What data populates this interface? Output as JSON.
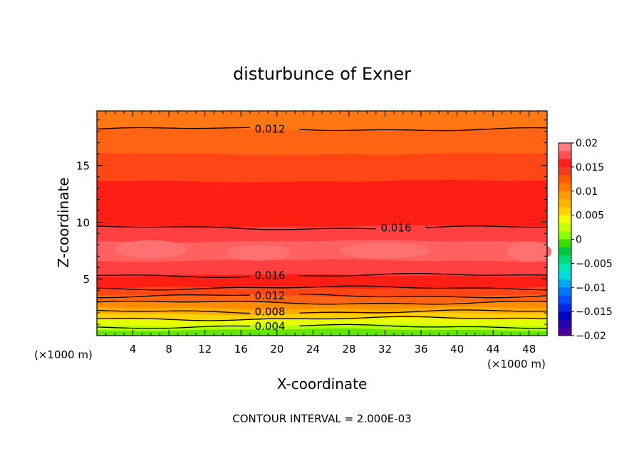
{
  "chart_data": {
    "type": "heatmap",
    "title": "disturbunce of Exner",
    "xlabel": "X-coordinate",
    "ylabel": "Z-coordinate",
    "x_unit_label": "(×1000 m)",
    "x_unit_label_right": "(×1000 m)",
    "xlim": [
      0,
      50
    ],
    "ylim": [
      0,
      19.8
    ],
    "x_ticks": [
      4,
      8,
      12,
      16,
      20,
      24,
      28,
      32,
      36,
      40,
      44,
      48
    ],
    "y_ticks": [
      5,
      10,
      15
    ],
    "footer": "CONTOUR INTERVAL = 2.000E-03",
    "contour_interval": 0.002,
    "colorbar": {
      "min": -0.02,
      "max": 0.02,
      "ticks": [
        "0.02",
        "0.015",
        "0.01",
        "0.005",
        "0",
        "−0.005",
        "−0.01",
        "−0.015",
        "−0.02"
      ],
      "colors": [
        "#ff8080",
        "#ff5050",
        "#ff1e1e",
        "#f03c1e",
        "#ff5a00",
        "#ff7a00",
        "#ff9a00",
        "#ffb400",
        "#ffd200",
        "#f0ff00",
        "#c8ff00",
        "#8cff00",
        "#3cdc00",
        "#00c83c",
        "#00dc78",
        "#00e6b4",
        "#00dcdc",
        "#00aaf0",
        "#0078ff",
        "#0050ff",
        "#0028e6",
        "#0000c8",
        "#2800b4",
        "#5000a0"
      ]
    },
    "bands": [
      {
        "z_top": 19.8,
        "z_bot": 18.2,
        "value": 0.0115,
        "color": "#ff7814"
      },
      {
        "z_top": 18.2,
        "z_bot": 16.0,
        "value": 0.0125,
        "color": "#ff6414"
      },
      {
        "z_top": 16.0,
        "z_bot": 13.6,
        "value": 0.0135,
        "color": "#ff4614"
      },
      {
        "z_top": 13.6,
        "z_bot": 9.6,
        "value": 0.015,
        "color": "#ff1e14"
      },
      {
        "z_top": 9.6,
        "z_bot": 8.3,
        "value": 0.0165,
        "color": "#ff4040"
      },
      {
        "z_top": 8.3,
        "z_bot": 6.6,
        "value": 0.018,
        "color": "#ff6060"
      },
      {
        "z_top": 6.6,
        "z_bot": 5.3,
        "value": 0.0165,
        "color": "#ff4040"
      },
      {
        "z_top": 5.3,
        "z_bot": 4.2,
        "value": 0.015,
        "color": "#ff1e14"
      },
      {
        "z_top": 4.2,
        "z_bot": 3.5,
        "value": 0.0135,
        "color": "#ff4614"
      },
      {
        "z_top": 3.5,
        "z_bot": 2.9,
        "value": 0.0125,
        "color": "#ff6414"
      },
      {
        "z_top": 2.9,
        "z_bot": 2.4,
        "value": 0.0115,
        "color": "#ff8c00"
      },
      {
        "z_top": 2.4,
        "z_bot": 1.9,
        "value": 0.0105,
        "color": "#ffaa00"
      },
      {
        "z_top": 1.9,
        "z_bot": 1.4,
        "value": 0.009,
        "color": "#ffd200"
      },
      {
        "z_top": 1.4,
        "z_bot": 0.9,
        "value": 0.007,
        "color": "#e6ff00"
      },
      {
        "z_top": 0.9,
        "z_bot": 0.5,
        "value": 0.005,
        "color": "#b4ff00"
      },
      {
        "z_top": 0.5,
        "z_bot": 0.0,
        "value": 0.003,
        "color": "#64e600"
      }
    ],
    "contours": [
      {
        "value": 0.012,
        "z": 18.2,
        "label": "0.012",
        "label_x": 18
      },
      {
        "value": 0.016,
        "z": 9.5,
        "label": "0.016",
        "label_x": 32
      },
      {
        "value": 0.016,
        "z": 5.3,
        "label": "0.016",
        "label_x": 18
      },
      {
        "value": 0.014,
        "z": 4.2,
        "label": "",
        "label_x": null
      },
      {
        "value": 0.012,
        "z": 3.5,
        "label": "0.012",
        "label_x": 18
      },
      {
        "value": 0.01,
        "z": 2.9,
        "label": "",
        "label_x": null
      },
      {
        "value": 0.008,
        "z": 2.1,
        "label": "0.008",
        "label_x": 18
      },
      {
        "value": 0.006,
        "z": 1.5,
        "label": "",
        "label_x": null
      },
      {
        "value": 0.004,
        "z": 0.8,
        "label": "0.004",
        "label_x": 18
      }
    ]
  }
}
